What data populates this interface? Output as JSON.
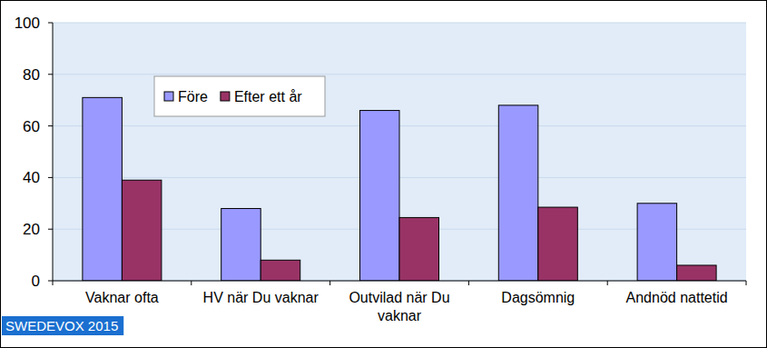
{
  "chart_data": {
    "type": "bar",
    "categories": [
      "Vaknar ofta",
      "HV när Du vaknar",
      "Outvilad när Du vaknar",
      "Dagsömnig",
      "Andnöd nattetid"
    ],
    "series": [
      {
        "name": "Före",
        "color": "#9999ff",
        "values": [
          71,
          28,
          66,
          68,
          30
        ]
      },
      {
        "name": "Efter ett år",
        "color": "#993366",
        "values": [
          39,
          8,
          24.5,
          28.5,
          6
        ]
      }
    ],
    "ylim": [
      0,
      100
    ],
    "yticks": [
      0,
      20,
      40,
      60,
      80,
      100
    ],
    "grid": true,
    "legend": "top-left",
    "annotation": "SWEDEVOX 2015"
  }
}
